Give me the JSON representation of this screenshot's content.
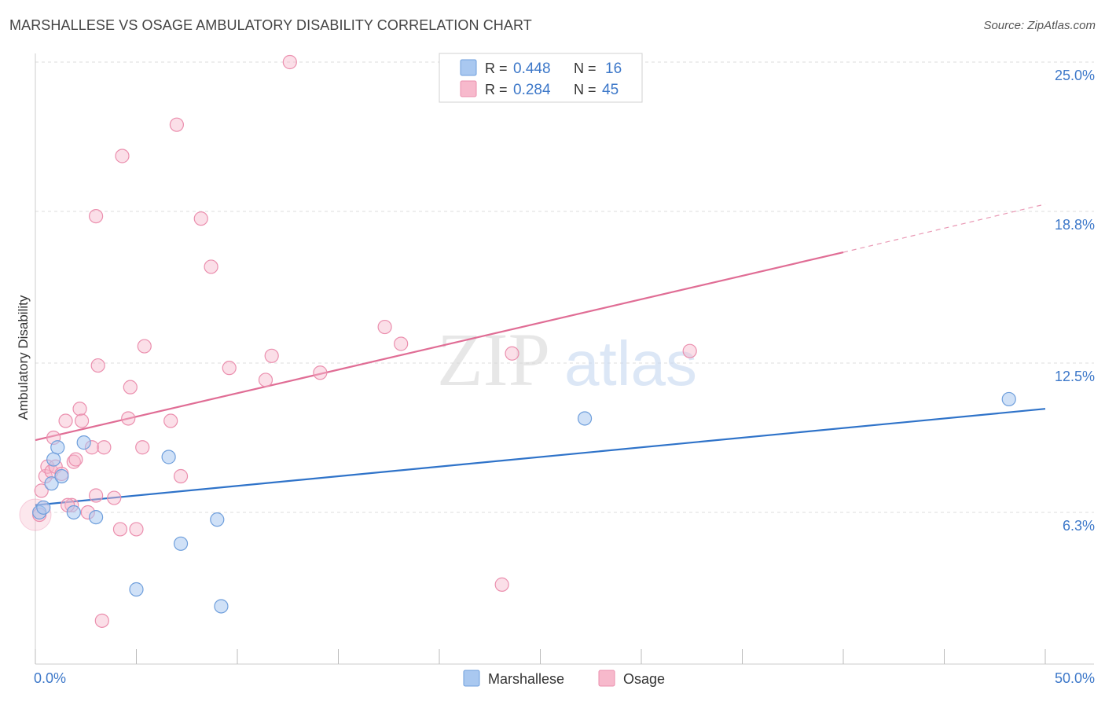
{
  "title": "MARSHALLESE VS OSAGE AMBULATORY DISABILITY CORRELATION CHART",
  "source": "Source: ZipAtlas.com",
  "watermark": {
    "zip": "ZIP",
    "atlas": "atlas"
  },
  "colors": {
    "marshallese": "#a9c8f0",
    "marshallese_stroke": "#6f9fdc",
    "marshallese_line": "#2f73c9",
    "osage": "#f7b9cc",
    "osage_stroke": "#eb8fae",
    "osage_line": "#e06d95",
    "tick_label": "#3d78c9",
    "grid": "#dddddd"
  },
  "chart_data": {
    "type": "scatter",
    "title": "MARSHALLESE VS OSAGE AMBULATORY DISABILITY CORRELATION CHART",
    "xlabel": "",
    "ylabel": "Ambulatory Disability",
    "xlim": [
      0,
      50
    ],
    "ylim": [
      0,
      25
    ],
    "x_tick_labels": [
      "0.0%",
      "50.0%"
    ],
    "y_ticks": [
      6.3,
      12.5,
      18.8,
      25.0
    ],
    "y_tick_labels": [
      "6.3%",
      "12.5%",
      "18.8%",
      "25.0%"
    ],
    "grid": true,
    "legend_position": "top-center",
    "legend": [
      {
        "r_label": "R =",
        "r_value": "0.448",
        "n_label": "N =",
        "n_value": "16"
      },
      {
        "r_label": "R =",
        "r_value": "0.284",
        "n_label": "N =",
        "n_value": "45"
      }
    ],
    "bottom_legend": [
      "Marshallese",
      "Osage"
    ],
    "series": [
      {
        "name": "Marshallese",
        "points": [
          [
            0.2,
            6.3
          ],
          [
            0.4,
            6.5
          ],
          [
            0.8,
            7.5
          ],
          [
            0.9,
            8.5
          ],
          [
            1.1,
            9.0
          ],
          [
            1.3,
            7.8
          ],
          [
            1.9,
            6.3
          ],
          [
            2.4,
            9.2
          ],
          [
            3.0,
            6.1
          ],
          [
            5.0,
            3.1
          ],
          [
            6.6,
            8.6
          ],
          [
            7.2,
            5.0
          ],
          [
            9.0,
            6.0
          ],
          [
            9.2,
            2.4
          ],
          [
            27.2,
            10.2
          ],
          [
            48.2,
            11.0
          ]
        ],
        "trend": {
          "x0": 0,
          "y0": 6.6,
          "x1": 50,
          "y1": 10.6
        }
      },
      {
        "name": "Osage",
        "points": [
          [
            0.2,
            6.2
          ],
          [
            0.3,
            7.2
          ],
          [
            0.5,
            7.8
          ],
          [
            0.6,
            8.2
          ],
          [
            0.8,
            8.0
          ],
          [
            0.9,
            9.4
          ],
          [
            1.0,
            8.2
          ],
          [
            1.3,
            7.9
          ],
          [
            1.5,
            10.1
          ],
          [
            1.8,
            6.6
          ],
          [
            1.9,
            8.4
          ],
          [
            2.0,
            8.5
          ],
          [
            2.2,
            10.6
          ],
          [
            2.3,
            10.1
          ],
          [
            2.6,
            6.3
          ],
          [
            2.8,
            9.0
          ],
          [
            3.0,
            7.0
          ],
          [
            3.1,
            12.4
          ],
          [
            3.4,
            9.0
          ],
          [
            3.9,
            6.9
          ],
          [
            4.2,
            5.6
          ],
          [
            4.3,
            21.1
          ],
          [
            4.6,
            10.2
          ],
          [
            4.7,
            11.5
          ],
          [
            5.0,
            5.6
          ],
          [
            5.3,
            9.0
          ],
          [
            5.4,
            13.2
          ],
          [
            6.7,
            10.1
          ],
          [
            7.0,
            22.4
          ],
          [
            7.2,
            7.8
          ],
          [
            8.2,
            18.5
          ],
          [
            8.7,
            16.5
          ],
          [
            9.6,
            12.3
          ],
          [
            11.4,
            11.8
          ],
          [
            11.7,
            12.8
          ],
          [
            12.6,
            25.0
          ],
          [
            14.1,
            12.1
          ],
          [
            17.3,
            14.0
          ],
          [
            18.1,
            13.3
          ],
          [
            23.1,
            3.3
          ],
          [
            23.6,
            12.9
          ],
          [
            32.4,
            13.0
          ],
          [
            3.3,
            1.8
          ],
          [
            3.0,
            18.6
          ],
          [
            1.6,
            6.6
          ]
        ],
        "trend": {
          "x0": 0,
          "y0": 9.3,
          "x1": 40,
          "y1": 17.1
        },
        "trend_dashed": {
          "x0": 40,
          "y0": 17.1,
          "x1": 50,
          "y1": 19.1
        }
      }
    ]
  }
}
